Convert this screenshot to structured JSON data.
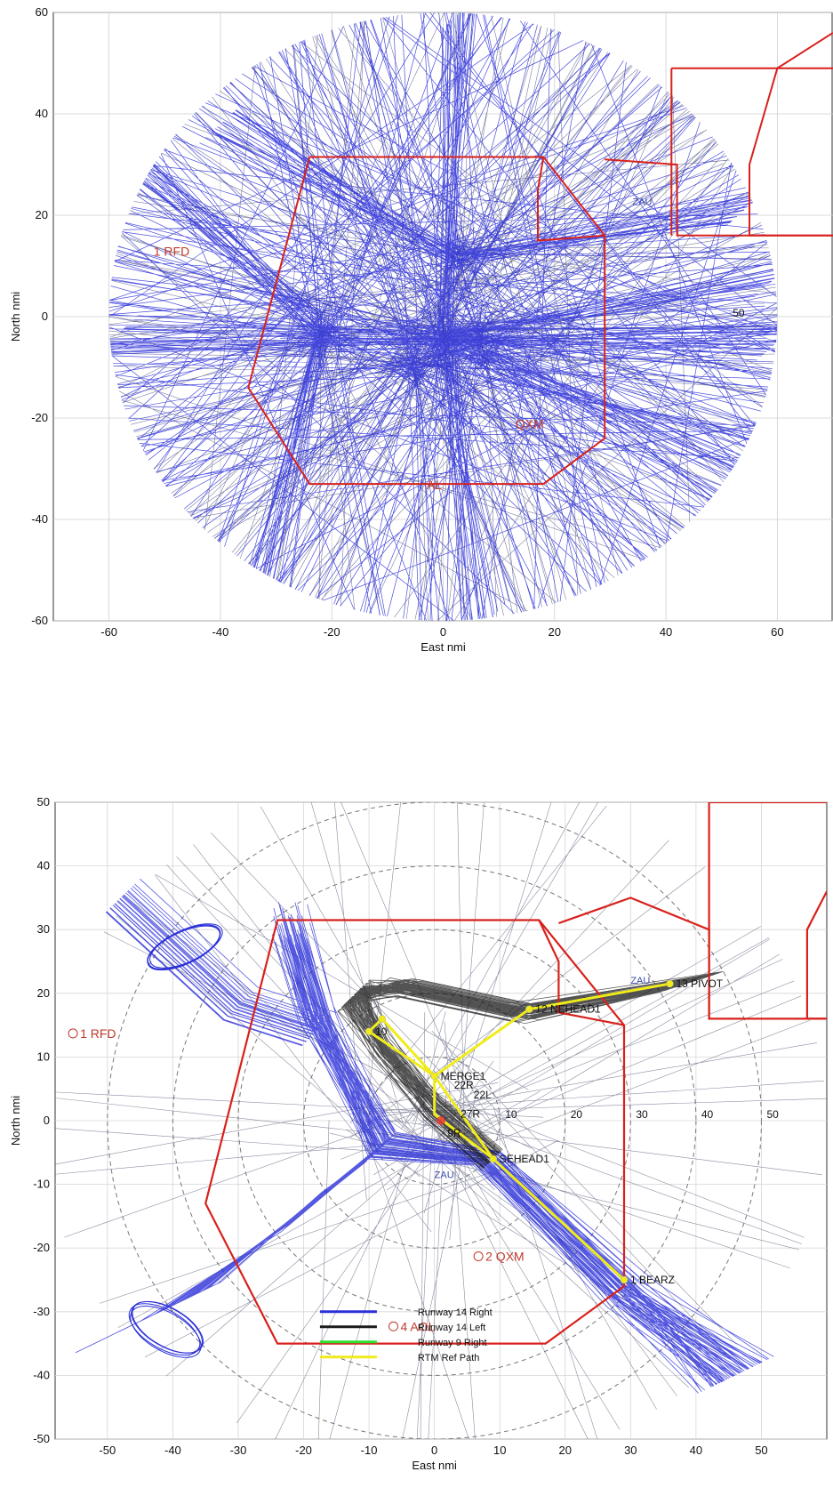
{
  "colors": {
    "track_blue": "#2b2fd8",
    "track_black": "#1a1a1a",
    "boundary_red": "#d8211c",
    "ref_yellow": "#f0ec1a",
    "green": "#2ee02e",
    "label_red": "#c0392b",
    "label_blue": "#3949ab"
  },
  "chart_data": [
    {
      "type": "scatter",
      "xlabel": "East  nmi",
      "ylabel": "North  nmi",
      "xlim": [
        -70,
        70
      ],
      "ylim": [
        -60,
        60
      ],
      "xticks": [
        -60,
        -40,
        -20,
        0,
        20,
        40,
        60
      ],
      "yticks": [
        -60,
        -40,
        -20,
        0,
        20,
        40,
        60
      ],
      "grid": true,
      "circle_radius": 60,
      "labels": [
        {
          "text": "1 RFD",
          "x": -52,
          "y": 12,
          "color": "red"
        },
        {
          "text": "AL",
          "x": -3,
          "y": -34,
          "color": "red"
        },
        {
          "text": "QXM",
          "x": 13,
          "y": -22,
          "color": "red"
        },
        {
          "text": "ZAU",
          "x": 34,
          "y": 22,
          "color": "blue"
        },
        {
          "text": "50",
          "x": 52,
          "y": 0,
          "color": "black"
        }
      ],
      "boundaries": [
        [
          [
            -24,
            31.5
          ],
          [
            18,
            31.5
          ],
          [
            29,
            16
          ],
          [
            29,
            -24
          ],
          [
            18,
            -33
          ],
          [
            -24,
            -33
          ],
          [
            -35,
            -14
          ],
          [
            -24,
            31.5
          ]
        ],
        [
          [
            18,
            31.5
          ],
          [
            17,
            25
          ],
          [
            17,
            15
          ],
          [
            29,
            16
          ]
        ],
        [
          [
            29,
            31
          ],
          [
            42,
            30
          ],
          [
            42,
            16
          ],
          [
            70,
            16
          ]
        ],
        [
          [
            41,
            49
          ],
          [
            70,
            49
          ]
        ],
        [
          [
            41,
            49
          ],
          [
            41,
            16
          ]
        ],
        [
          [
            70,
            56
          ],
          [
            60,
            49
          ],
          [
            55,
            30
          ],
          [
            55,
            16
          ],
          [
            70,
            16
          ]
        ]
      ]
    },
    {
      "type": "line",
      "xlabel": "East  nmi",
      "ylabel": "North  nmi",
      "xlim": [
        -58,
        60
      ],
      "ylim": [
        -50,
        50
      ],
      "xticks": [
        -50,
        -40,
        -30,
        -20,
        -10,
        0,
        10,
        20,
        30,
        40,
        50
      ],
      "yticks": [
        -50,
        -40,
        -30,
        -20,
        -10,
        0,
        10,
        20,
        30,
        40,
        50
      ],
      "grid": true,
      "range_rings": [
        10,
        20,
        30,
        40,
        50
      ],
      "ring_labels": [
        "10",
        "20",
        "30",
        "40",
        "50"
      ],
      "boundaries": [
        [
          [
            -24,
            31.5
          ],
          [
            16,
            31.5
          ],
          [
            29,
            15
          ],
          [
            29,
            -26
          ],
          [
            17,
            -35
          ],
          [
            -24,
            -35
          ],
          [
            -35,
            -13
          ],
          [
            -24,
            31.5
          ]
        ],
        [
          [
            16,
            31.5
          ],
          [
            19,
            25
          ],
          [
            19,
            17
          ],
          [
            29,
            15
          ]
        ],
        [
          [
            19,
            31
          ],
          [
            30,
            35
          ],
          [
            42,
            30
          ],
          [
            42,
            16
          ],
          [
            60,
            16
          ]
        ],
        [
          [
            42,
            50
          ],
          [
            60,
            50
          ]
        ],
        [
          [
            42,
            50
          ],
          [
            42,
            16
          ]
        ],
        [
          [
            60,
            36
          ],
          [
            57,
            30
          ],
          [
            57,
            16
          ],
          [
            60,
            16
          ]
        ]
      ],
      "ref_path": [
        {
          "label": "1 BEARZ",
          "x": 29,
          "y": -25
        },
        {
          "label": "SEHEAD1",
          "x": 9,
          "y": -6
        },
        {
          "label": "MERGE1",
          "x": 0,
          "y": 7
        },
        {
          "label": "10",
          "x": -10,
          "y": 14
        },
        {
          "label": "",
          "x": -8,
          "y": 16
        },
        {
          "label": "12 NEHEAD1",
          "x": 14.5,
          "y": 17.5
        },
        {
          "label": "13 PIVOT",
          "x": 36,
          "y": 21.5
        }
      ],
      "ref_branch": [
        [
          0,
          7
        ],
        [
          0,
          1
        ],
        [
          9,
          -6
        ]
      ],
      "runway_labels": [
        "22R",
        "22L",
        "27R",
        "9R"
      ],
      "waypoint_labels": [
        {
          "text": "1 RFD",
          "x": -55,
          "y": 13,
          "color": "red"
        },
        {
          "text": "2 QXM",
          "x": 7,
          "y": -22,
          "color": "red"
        },
        {
          "text": "4 AOL",
          "x": -6,
          "y": -33,
          "color": "red"
        },
        {
          "text": "ZAU",
          "x": 0,
          "y": -9,
          "color": "blue"
        },
        {
          "text": "ZAU",
          "x": 30,
          "y": 21.5,
          "color": "blue"
        }
      ],
      "legend": {
        "placement": "lower-center",
        "entries": [
          {
            "name": "Runway 14 Right",
            "color": "#2b2fd8"
          },
          {
            "name": "Runway 14 Left",
            "color": "#1a1a1a"
          },
          {
            "name": "Runway 9 Right",
            "color": "#2ee02e"
          },
          {
            "name": "RTM Ref Path",
            "color": "#f0ec1a"
          }
        ]
      }
    }
  ]
}
